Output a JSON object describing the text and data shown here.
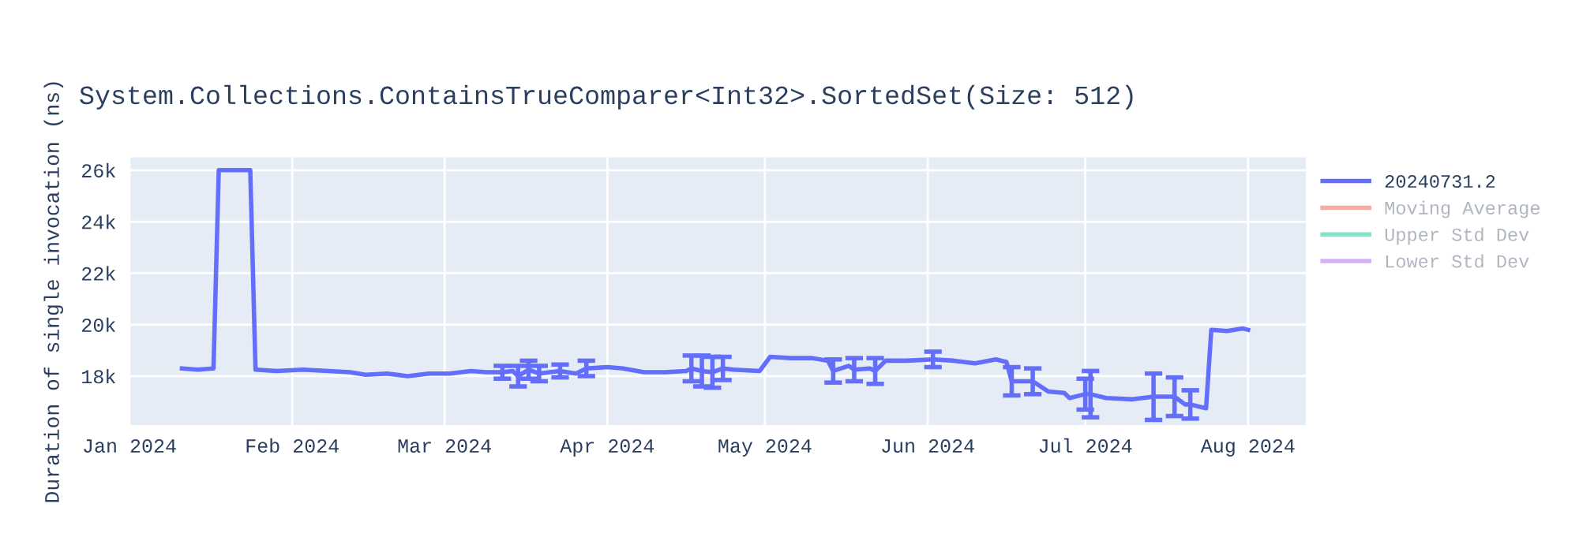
{
  "chart_data": {
    "type": "line",
    "title": "System.Collections.ContainsTrueComparer<Int32>.SortedSet(Size: 512)",
    "ylabel": "Duration of single invocation (ns)",
    "x": [
      "2024-01-11",
      "2024-01-14",
      "2024-01-17",
      "2024-01-18",
      "2024-01-21",
      "2024-01-24",
      "2024-01-25",
      "2024-01-29",
      "2024-02-03",
      "2024-02-08",
      "2024-02-12",
      "2024-02-15",
      "2024-02-19",
      "2024-02-23",
      "2024-02-27",
      "2024-03-02",
      "2024-03-06",
      "2024-03-09",
      "2024-03-12",
      "2024-03-14",
      "2024-03-15",
      "2024-03-17",
      "2024-03-19",
      "2024-03-21",
      "2024-03-23",
      "2024-03-26",
      "2024-03-28",
      "2024-04-01",
      "2024-04-04",
      "2024-04-08",
      "2024-04-12",
      "2024-04-16",
      "2024-04-17",
      "2024-04-19",
      "2024-04-21",
      "2024-04-23",
      "2024-04-25",
      "2024-04-30",
      "2024-05-02",
      "2024-05-06",
      "2024-05-10",
      "2024-05-13",
      "2024-05-14",
      "2024-05-17",
      "2024-05-18",
      "2024-05-21",
      "2024-05-22",
      "2024-05-24",
      "2024-05-28",
      "2024-06-02",
      "2024-06-06",
      "2024-06-10",
      "2024-06-14",
      "2024-06-16",
      "2024-06-17",
      "2024-06-21",
      "2024-06-24",
      "2024-06-27",
      "2024-06-28",
      "2024-07-01",
      "2024-07-02",
      "2024-07-05",
      "2024-07-10",
      "2024-07-14",
      "2024-07-18",
      "2024-07-20",
      "2024-07-21",
      "2024-07-24",
      "2024-07-25",
      "2024-07-28",
      "2024-07-31",
      "2024-08-01"
    ],
    "series": [
      {
        "name": "20240731.2",
        "color": "#636efa",
        "values": [
          18300,
          18250,
          18300,
          26000,
          26000,
          26000,
          18250,
          18200,
          18250,
          18200,
          18150,
          18050,
          18100,
          18000,
          18100,
          18100,
          18200,
          18150,
          18150,
          18200,
          18000,
          18250,
          18100,
          18150,
          18200,
          18100,
          18300,
          18350,
          18300,
          18150,
          18150,
          18200,
          18300,
          18200,
          18150,
          18300,
          18250,
          18200,
          18750,
          18700,
          18700,
          18600,
          18200,
          18400,
          18250,
          18300,
          18200,
          18600,
          18600,
          18650,
          18600,
          18500,
          18650,
          18550,
          17800,
          17800,
          17400,
          17350,
          17150,
          17300,
          17300,
          17150,
          17100,
          17200,
          17200,
          16900,
          16900,
          16750,
          19800,
          19750,
          19850,
          19800
        ],
        "errors": [
          null,
          null,
          null,
          null,
          null,
          null,
          null,
          null,
          null,
          null,
          null,
          null,
          null,
          null,
          null,
          null,
          null,
          null,
          250,
          null,
          400,
          350,
          300,
          null,
          250,
          null,
          300,
          null,
          null,
          null,
          null,
          null,
          500,
          600,
          600,
          450,
          null,
          null,
          null,
          null,
          null,
          null,
          450,
          null,
          450,
          null,
          500,
          null,
          null,
          300,
          null,
          null,
          null,
          null,
          550,
          500,
          null,
          null,
          null,
          600,
          900,
          null,
          null,
          900,
          750,
          null,
          550,
          null,
          null,
          null,
          null,
          null
        ]
      },
      {
        "name": "Moving Average",
        "color": "#ef553b",
        "values": [
          null,
          null,
          null,
          null,
          null,
          null,
          null,
          null,
          null,
          null,
          null,
          null,
          null,
          null,
          null,
          null,
          null,
          null,
          null,
          null,
          null,
          null,
          null,
          null,
          null,
          null,
          null,
          null,
          null,
          null,
          null,
          null,
          null,
          null,
          null,
          null,
          null,
          null,
          null,
          null,
          null,
          null,
          null,
          null,
          null,
          null,
          null,
          null,
          null,
          null,
          null,
          null,
          null,
          null,
          null,
          null,
          null,
          null,
          null,
          null,
          null,
          null,
          null,
          null,
          null,
          null,
          null,
          null,
          null,
          null,
          null,
          null
        ]
      },
      {
        "name": "Upper Std Dev",
        "color": "#00cc96",
        "values": [
          null,
          null,
          null,
          null,
          null,
          null,
          null,
          null,
          null,
          null,
          null,
          null,
          null,
          null,
          null,
          null,
          null,
          null,
          null,
          null,
          null,
          null,
          null,
          null,
          null,
          null,
          null,
          null,
          null,
          null,
          null,
          null,
          null,
          null,
          null,
          null,
          null,
          null,
          null,
          null,
          null,
          null,
          null,
          null,
          null,
          null,
          null,
          null,
          null,
          null,
          null,
          null,
          null,
          null,
          null,
          null,
          null,
          null,
          null,
          null,
          null,
          null,
          null,
          null,
          null,
          null,
          null,
          null,
          null,
          null,
          null,
          null
        ]
      },
      {
        "name": "Lower Std Dev",
        "color": "#ab63fa",
        "values": [
          null,
          null,
          null,
          null,
          null,
          null,
          null,
          null,
          null,
          null,
          null,
          null,
          null,
          null,
          null,
          null,
          null,
          null,
          null,
          null,
          null,
          null,
          null,
          null,
          null,
          null,
          null,
          null,
          null,
          null,
          null,
          null,
          null,
          null,
          null,
          null,
          null,
          null,
          null,
          null,
          null,
          null,
          null,
          null,
          null,
          null,
          null,
          null,
          null,
          null,
          null,
          null,
          null,
          null,
          null,
          null,
          null,
          null,
          null,
          null,
          null,
          null,
          null,
          null,
          null,
          null,
          null,
          null,
          null,
          null,
          null,
          null
        ]
      }
    ],
    "xlim": [
      "2024-01-01",
      "2024-08-12"
    ],
    "xticks": [
      {
        "value": "2024-01-01",
        "label": "Jan 2024"
      },
      {
        "value": "2024-02-01",
        "label": "Feb 2024"
      },
      {
        "value": "2024-03-01",
        "label": "Mar 2024"
      },
      {
        "value": "2024-04-01",
        "label": "Apr 2024"
      },
      {
        "value": "2024-05-01",
        "label": "May 2024"
      },
      {
        "value": "2024-06-01",
        "label": "Jun 2024"
      },
      {
        "value": "2024-07-01",
        "label": "Jul 2024"
      },
      {
        "value": "2024-08-01",
        "label": "Aug 2024"
      }
    ],
    "ylim": [
      16100,
      26500
    ],
    "yticks": [
      {
        "value": 18000,
        "label": "18k"
      },
      {
        "value": 20000,
        "label": "20k"
      },
      {
        "value": 22000,
        "label": "22k"
      },
      {
        "value": 24000,
        "label": "24k"
      },
      {
        "value": 26000,
        "label": "26k"
      }
    ],
    "grid": true,
    "legend": "right",
    "marker": "none",
    "line_style": "solid"
  }
}
